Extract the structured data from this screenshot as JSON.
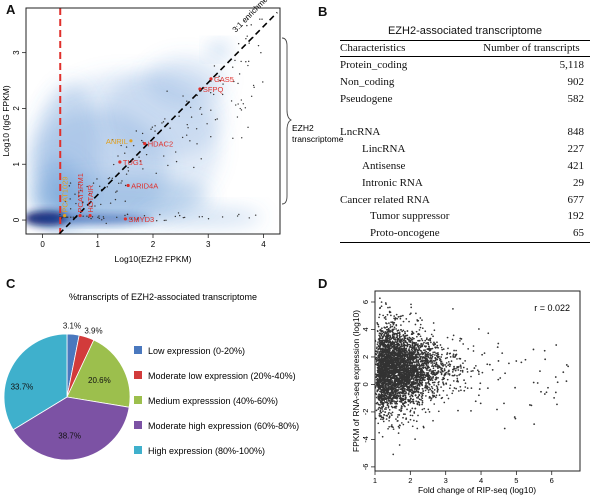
{
  "panels": {
    "a": "A",
    "b": "B",
    "c": "C",
    "d": "D"
  },
  "colors": {
    "scatter_point": "#333333",
    "density_blue": "#5a92d2",
    "highlight_red": "#e0302c",
    "highlight_orange": "#e0a020",
    "diag_line": "#000000",
    "cutoff_line": "#e0302c"
  },
  "chart_data": [
    {
      "id": "A",
      "type": "scatter",
      "title": "",
      "xlabel": "Log10(EZH2 FPKM)",
      "ylabel": "Log10 (IgG FPKM)",
      "xlim": [
        -0.3,
        4.3
      ],
      "ylim": [
        -0.25,
        3.8
      ],
      "xticks": [
        0,
        1,
        2,
        3,
        4
      ],
      "yticks": [
        0,
        1,
        2,
        3
      ],
      "enrichment_line_label": "3:1 enrichment line",
      "bracket_label_line1": "EZH2",
      "bracket_label_line2": "transcriptome",
      "vertical_cutoff_x": 0.32,
      "labeled_points": [
        {
          "label": "GAS5",
          "x": 3.05,
          "y": 2.53,
          "color": "red"
        },
        {
          "label": "SFPQ",
          "x": 2.85,
          "y": 2.35,
          "color": "red"
        },
        {
          "label": "ANRIL",
          "x": 1.6,
          "y": 1.42,
          "color": "orange"
        },
        {
          "label": "HDAC2",
          "x": 1.85,
          "y": 1.37,
          "color": "red"
        },
        {
          "label": "TUG1",
          "x": 1.4,
          "y": 1.04,
          "color": "red"
        },
        {
          "label": "ARID4A",
          "x": 1.55,
          "y": 0.62,
          "color": "red"
        },
        {
          "label": "SMYD3",
          "x": 1.5,
          "y": 0.02,
          "color": "red"
        },
        {
          "label": "PCAT1029",
          "x": 0.4,
          "y": 0.08,
          "color": "orange"
        },
        {
          "label": "PCAT1RM1",
          "x": 0.68,
          "y": 0.08,
          "color": "red"
        },
        {
          "label": "HOTAIR",
          "x": 0.86,
          "y": 0.08,
          "color": "red"
        }
      ]
    },
    {
      "id": "C",
      "type": "pie",
      "title": "%transcripts of EZH2-associated transcriptome",
      "slices": [
        {
          "label": "Low expression (0-20%)",
          "value": 3.1,
          "display": "3.1%",
          "color": "#4a78be"
        },
        {
          "label": "Moderate low expression (20%-40%)",
          "value": 3.9,
          "display": "3.9%",
          "color": "#d23b3b"
        },
        {
          "label": "Medium expresssion (40%-60%)",
          "value": 20.6,
          "display": "20.6%",
          "color": "#9cbf4d"
        },
        {
          "label": "Moderate high expression (60%-80%)",
          "value": 38.7,
          "display": "38.7%",
          "color": "#7c52a4"
        },
        {
          "label": "High expression (80%-100%)",
          "value": 33.7,
          "display": "33.7%",
          "color": "#3fb0cc"
        }
      ]
    },
    {
      "id": "D",
      "type": "scatter",
      "title": "",
      "xlabel": "Fold change of RIP-seq (log10)",
      "ylabel": "FPKM of RNA-seq expression (log10)",
      "xlim": [
        1,
        6.8
      ],
      "ylim": [
        -6.3,
        6.8
      ],
      "xticks": [
        1,
        2,
        3,
        4,
        5,
        6
      ],
      "yticks": [
        -6,
        -4,
        -2,
        0,
        2,
        4,
        6
      ],
      "annotation": "r = 0.022",
      "correlation_r": 0.022
    }
  ],
  "table": {
    "title": "EZH2-associated transcriptome",
    "headers": [
      "Characteristics",
      "Number of transcripts"
    ],
    "rows": [
      {
        "label": "Protein_coding",
        "value": "5,118",
        "indent": 0
      },
      {
        "label": "Non_coding",
        "value": "902",
        "indent": 0
      },
      {
        "label": "Pseudogene",
        "value": "582",
        "indent": 0
      },
      {
        "label": "",
        "value": "",
        "indent": 0
      },
      {
        "label": "LncRNA",
        "value": "848",
        "indent": 0
      },
      {
        "label": "LincRNA",
        "value": "227",
        "indent": 1
      },
      {
        "label": "Antisense",
        "value": "421",
        "indent": 1
      },
      {
        "label": "Intronic RNA",
        "value": "29",
        "indent": 1
      },
      {
        "label": "Cancer related RNA",
        "value": "677",
        "indent": 0
      },
      {
        "label": "Tumor suppressor",
        "value": "192",
        "indent": 2
      },
      {
        "label": "Proto-oncogene",
        "value": "65",
        "indent": 2
      }
    ]
  }
}
